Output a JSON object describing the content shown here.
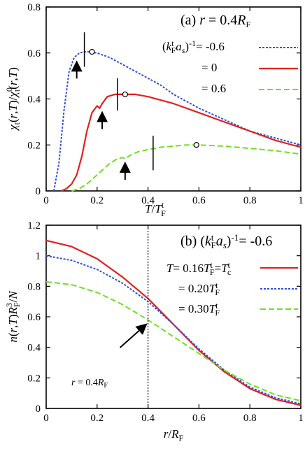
{
  "chart_data": [
    {
      "type": "line",
      "title": "(a) r = 0.4R_F",
      "xlabel": "T/T_F^t",
      "ylabel": "χ_t(r,T)/χ_t^0(r,T)",
      "xlim": [
        0,
        1
      ],
      "ylim": [
        0,
        0.8
      ],
      "xticks": [
        "0",
        "0.2",
        "0.4",
        "0.6",
        "0.8",
        "1"
      ],
      "yticks": [
        "0",
        "0.2",
        "0.4",
        "0.6",
        "0.8"
      ],
      "legend_position": "top-right",
      "series": [
        {
          "name": "(k_F^t a_s)^-1 = -0.6",
          "color": "#3050e0",
          "dash": "dotted",
          "x": [
            0.03,
            0.05,
            0.07,
            0.09,
            0.11,
            0.13,
            0.15,
            0.17,
            0.2,
            0.25,
            0.3,
            0.35,
            0.4,
            0.45,
            0.5,
            0.6,
            0.7,
            0.8,
            0.9,
            1.0
          ],
          "y": [
            0.0,
            0.12,
            0.35,
            0.52,
            0.58,
            0.6,
            0.605,
            0.605,
            0.6,
            0.58,
            0.55,
            0.52,
            0.49,
            0.46,
            0.42,
            0.36,
            0.31,
            0.26,
            0.23,
            0.2
          ],
          "marker": {
            "x": 0.18,
            "y": 0.605
          },
          "tick_mark": {
            "x": 0.15,
            "y1": 0.54,
            "y2": 0.69
          },
          "arrow": {
            "x": 0.12,
            "y": 0.58
          }
        },
        {
          "name": "= 0",
          "color": "#e02020",
          "dash": "solid",
          "x": [
            0.06,
            0.08,
            0.1,
            0.12,
            0.14,
            0.16,
            0.18,
            0.2,
            0.21,
            0.22,
            0.24,
            0.27,
            0.3,
            0.35,
            0.4,
            0.5,
            0.6,
            0.7,
            0.8,
            0.9,
            1.0
          ],
          "y": [
            0.0,
            0.01,
            0.03,
            0.07,
            0.15,
            0.26,
            0.34,
            0.37,
            0.36,
            0.38,
            0.41,
            0.42,
            0.42,
            0.42,
            0.41,
            0.38,
            0.34,
            0.3,
            0.26,
            0.22,
            0.19
          ],
          "marker": {
            "x": 0.31,
            "y": 0.42
          },
          "tick_mark": {
            "x": 0.28,
            "y1": 0.35,
            "y2": 0.49
          },
          "arrow": {
            "x": 0.22,
            "y": 0.36
          }
        },
        {
          "name": "= 0.6",
          "color": "#70e020",
          "dash": "dashed",
          "x": [
            0.1,
            0.13,
            0.16,
            0.19,
            0.22,
            0.25,
            0.28,
            0.3,
            0.31,
            0.33,
            0.36,
            0.4,
            0.45,
            0.5,
            0.55,
            0.6,
            0.7,
            0.8,
            0.9,
            1.0
          ],
          "y": [
            0.0,
            0.01,
            0.03,
            0.06,
            0.09,
            0.12,
            0.14,
            0.145,
            0.14,
            0.155,
            0.17,
            0.18,
            0.19,
            0.195,
            0.2,
            0.2,
            0.195,
            0.185,
            0.175,
            0.16
          ],
          "marker": {
            "x": 0.59,
            "y": 0.2
          },
          "tick_mark": {
            "x": 0.42,
            "y1": 0.09,
            "y2": 0.24
          },
          "arrow": {
            "x": 0.31,
            "y": 0.14
          }
        }
      ]
    },
    {
      "type": "line",
      "title": "(b) (k_F^t a_s)^-1 = -0.6",
      "xlabel": "r/R_F",
      "ylabel": "n(r,T)R_F^3/N",
      "xlim": [
        0,
        1
      ],
      "ylim": [
        0,
        1.2
      ],
      "xticks": [
        "0",
        "0.2",
        "0.4",
        "0.6",
        "0.8",
        "1"
      ],
      "yticks": [
        "0",
        "0.2",
        "0.4",
        "0.6",
        "0.8",
        "1",
        "1.2"
      ],
      "legend_position": "top-right",
      "vline": {
        "x": 0.4
      },
      "annotation": {
        "text": "r = 0.4R_F",
        "arrow_x": 0.4,
        "arrow_y": 0.6
      },
      "series": [
        {
          "name": "T = 0.16T_F^t = T_c^t",
          "color": "#e02020",
          "dash": "solid",
          "x": [
            0.0,
            0.1,
            0.2,
            0.3,
            0.4,
            0.5,
            0.6,
            0.7,
            0.8,
            0.9,
            1.0
          ],
          "y": [
            1.1,
            1.06,
            0.98,
            0.86,
            0.72,
            0.55,
            0.38,
            0.24,
            0.13,
            0.06,
            0.02
          ]
        },
        {
          "name": "= 0.20T_F^t",
          "color": "#3050e0",
          "dash": "dotted",
          "x": [
            0.0,
            0.1,
            0.2,
            0.3,
            0.4,
            0.5,
            0.6,
            0.7,
            0.8,
            0.9,
            1.0
          ],
          "y": [
            1.0,
            0.97,
            0.91,
            0.82,
            0.7,
            0.55,
            0.39,
            0.25,
            0.14,
            0.07,
            0.03
          ]
        },
        {
          "name": "= 0.30T_F^t",
          "color": "#70e020",
          "dash": "dashed",
          "x": [
            0.0,
            0.1,
            0.2,
            0.3,
            0.4,
            0.5,
            0.6,
            0.7,
            0.8,
            0.9,
            1.0
          ],
          "y": [
            0.83,
            0.81,
            0.76,
            0.68,
            0.58,
            0.47,
            0.36,
            0.25,
            0.16,
            0.09,
            0.05
          ]
        }
      ]
    }
  ]
}
